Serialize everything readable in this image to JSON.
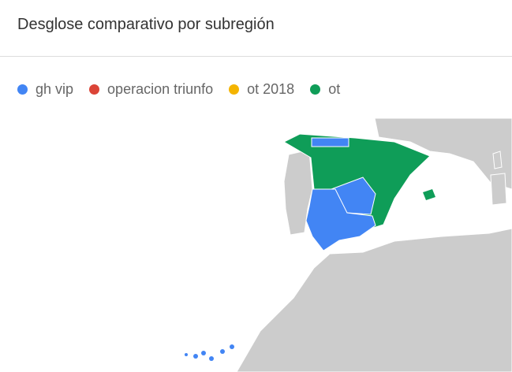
{
  "header": {
    "title": "Desglose comparativo por subregión"
  },
  "legend": [
    {
      "label": "gh vip",
      "color": "#4285f4"
    },
    {
      "label": "operacion triunfo",
      "color": "#db4437"
    },
    {
      "label": "ot 2018",
      "color": "#f4b400"
    },
    {
      "label": "ot",
      "color": "#0f9d58"
    }
  ]
}
